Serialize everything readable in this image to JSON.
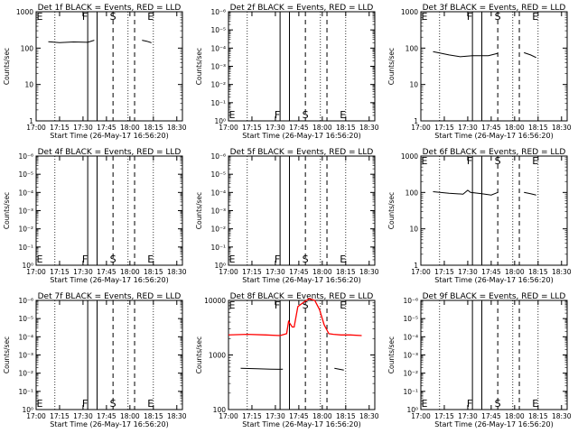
{
  "chart_data": [
    {
      "type": "line",
      "title": "Det 1f BLACK = Events, RED = LLD",
      "ylabel": "Counts/sec",
      "xlabel": "Start Time (26-May-17 16:56:20)",
      "yscale": "log",
      "ylim": [
        1,
        1000
      ],
      "y_ticks": [
        "1",
        "10",
        "100",
        "1000"
      ],
      "x_ticks": [
        "17:00",
        "17:15",
        "17:30",
        "17:45",
        "18:00",
        "18:15",
        "18:30"
      ],
      "markers": [
        "E",
        "F",
        "S",
        "E"
      ],
      "series": [
        {
          "color": "#000000",
          "x": [
            17.13,
            17.25,
            17.4,
            17.55,
            17.62
          ],
          "y": [
            150,
            142,
            148,
            144,
            165
          ]
        },
        {
          "color": "#000000",
          "x": [
            18.13,
            18.18,
            18.23
          ],
          "y": [
            165,
            155,
            140
          ]
        }
      ]
    },
    {
      "type": "line",
      "title": "Det 2f BLACK = Events, RED = LLD",
      "ylabel": "Counts/sec",
      "xlabel": "Start Time (26-May-17 16:56:20)",
      "yscale": "log",
      "ylim": [
        1,
        1000
      ],
      "y_ticks": [
        "10⁰",
        "10⁻¹",
        "10⁻²",
        "10⁻³",
        "10⁻⁴",
        "10⁻⁵",
        "10⁻⁶"
      ],
      "x_ticks": [
        "17:00",
        "17:15",
        "17:30",
        "17:45",
        "18:00",
        "18:15",
        "18:30"
      ],
      "markers": [
        "E",
        "F",
        "S",
        "E"
      ],
      "series": []
    },
    {
      "type": "line",
      "title": "Det 3f BLACK = Events, RED = LLD",
      "ylabel": "Counts/sec",
      "xlabel": "Start Time (26-May-17 16:56:20)",
      "yscale": "log",
      "ylim": [
        1,
        1000
      ],
      "y_ticks": [
        "1",
        "10",
        "100",
        "1000"
      ],
      "x_ticks": [
        "17:00",
        "17:15",
        "17:30",
        "17:45",
        "18:00",
        "18:15",
        "18:30"
      ],
      "markers": [
        "E",
        "F",
        "S",
        "E"
      ],
      "series": [
        {
          "color": "#000000",
          "x": [
            17.13,
            17.3,
            17.42,
            17.55,
            17.72,
            17.82
          ],
          "y": [
            80,
            65,
            58,
            62,
            62,
            72
          ]
        },
        {
          "color": "#000000",
          "x": [
            18.1,
            18.17,
            18.23
          ],
          "y": [
            75,
            65,
            55
          ]
        }
      ]
    },
    {
      "type": "line",
      "title": "Det 4f BLACK = Events, RED = LLD",
      "ylabel": "Counts/sec",
      "xlabel": "Start Time (26-May-17 16:56:20)",
      "yscale": "log",
      "ylim": [
        1,
        1000
      ],
      "y_ticks": [
        "10⁰",
        "10⁻¹",
        "10⁻²",
        "10⁻³",
        "10⁻⁴",
        "10⁻⁵",
        "10⁻⁶"
      ],
      "x_ticks": [
        "17:00",
        "17:15",
        "17:30",
        "17:45",
        "18:00",
        "18:15",
        "18:30"
      ],
      "markers": [
        "E",
        "F",
        "S",
        "E"
      ],
      "series": []
    },
    {
      "type": "line",
      "title": "Det 5f BLACK = Events, RED = LLD",
      "ylabel": "Counts/sec",
      "xlabel": "Start Time (26-May-17 16:56:20)",
      "yscale": "log",
      "ylim": [
        1,
        1000
      ],
      "y_ticks": [
        "10⁰",
        "10⁻¹",
        "10⁻²",
        "10⁻³",
        "10⁻⁴",
        "10⁻⁵",
        "10⁻⁶"
      ],
      "x_ticks": [
        "17:00",
        "17:15",
        "17:30",
        "17:45",
        "18:00",
        "18:15",
        "18:30"
      ],
      "markers": [
        "E",
        "F",
        "S",
        "E"
      ],
      "series": []
    },
    {
      "type": "line",
      "title": "Det 6f BLACK = Events, RED = LLD",
      "ylabel": "Counts/sec",
      "xlabel": "Start Time (26-May-17 16:56:20)",
      "yscale": "log",
      "ylim": [
        1,
        1000
      ],
      "y_ticks": [
        "1",
        "10",
        "100",
        "1000"
      ],
      "x_ticks": [
        "17:00",
        "17:15",
        "17:30",
        "17:45",
        "18:00",
        "18:15",
        "18:30"
      ],
      "markers": [
        "E",
        "F",
        "S",
        "E"
      ],
      "series": [
        {
          "color": "#000000",
          "x": [
            17.13,
            17.3,
            17.45,
            17.5,
            17.53,
            17.65,
            17.75,
            17.82
          ],
          "y": [
            105,
            95,
            90,
            115,
            100,
            92,
            85,
            100
          ]
        },
        {
          "color": "#000000",
          "x": [
            18.1,
            18.17,
            18.23
          ],
          "y": [
            100,
            92,
            85
          ]
        }
      ]
    },
    {
      "type": "line",
      "title": "Det 7f BLACK = Events, RED = LLD",
      "ylabel": "Counts/sec",
      "xlabel": "Start Time (26-May-17 16:56:20)",
      "yscale": "log",
      "ylim": [
        1,
        1000
      ],
      "y_ticks": [
        "10⁰",
        "10⁻¹",
        "10⁻²",
        "10⁻³",
        "10⁻⁴",
        "10⁻⁵",
        "10⁻⁶"
      ],
      "x_ticks": [
        "17:00",
        "17:15",
        "17:30",
        "17:45",
        "18:00",
        "18:15",
        "18:30"
      ],
      "markers": [
        "E",
        "F",
        "S",
        "E"
      ],
      "series": []
    },
    {
      "type": "line",
      "title": "Det 8f BLACK = Events, RED = LLD",
      "ylabel": "Counts/sec",
      "xlabel": "Start Time (26-May-17 16:56:20)",
      "yscale": "log",
      "ylim": [
        20,
        10000
      ],
      "y_ticks": [
        "100",
        "1000",
        "10000"
      ],
      "x_ticks": [
        "17:00",
        "17:15",
        "17:30",
        "17:45",
        "18:00",
        "18:15",
        "18:30"
      ],
      "markers": [
        "E",
        "F",
        "S",
        "E"
      ],
      "series": [
        {
          "color": "#000000",
          "x": [
            17.13,
            17.3,
            17.45,
            17.55,
            17.58
          ],
          "y": [
            210,
            205,
            200,
            198,
            200
          ]
        },
        {
          "color": "#000000",
          "x": [
            18.13,
            18.18,
            18.23
          ],
          "y": [
            210,
            200,
            190
          ]
        },
        {
          "color": "#ff0000",
          "x": [
            17.0,
            17.2,
            17.4,
            17.55,
            17.62,
            17.64,
            17.68,
            17.7,
            17.74,
            17.8,
            17.86,
            17.92,
            17.97,
            18.02,
            18.07,
            18.12,
            18.2,
            18.3,
            18.42
          ],
          "y": [
            1400,
            1450,
            1400,
            1350,
            1500,
            3000,
            2200,
            2200,
            7000,
            9000,
            11000,
            10000,
            6000,
            2500,
            1500,
            1450,
            1400,
            1400,
            1350
          ]
        }
      ]
    },
    {
      "type": "line",
      "title": "Det 9f BLACK = Events, RED = LLD",
      "ylabel": "Counts/sec",
      "xlabel": "Start Time (26-May-17 16:56:20)",
      "yscale": "log",
      "ylim": [
        1,
        1000
      ],
      "y_ticks": [
        "10⁰",
        "10⁻¹",
        "10⁻²",
        "10⁻³",
        "10⁻⁴",
        "10⁻⁵",
        "10⁻⁶"
      ],
      "x_ticks": [
        "17:00",
        "17:15",
        "17:30",
        "17:45",
        "18:00",
        "18:15",
        "18:30"
      ],
      "markers": [
        "E",
        "F",
        "S",
        "E"
      ],
      "series": []
    }
  ]
}
